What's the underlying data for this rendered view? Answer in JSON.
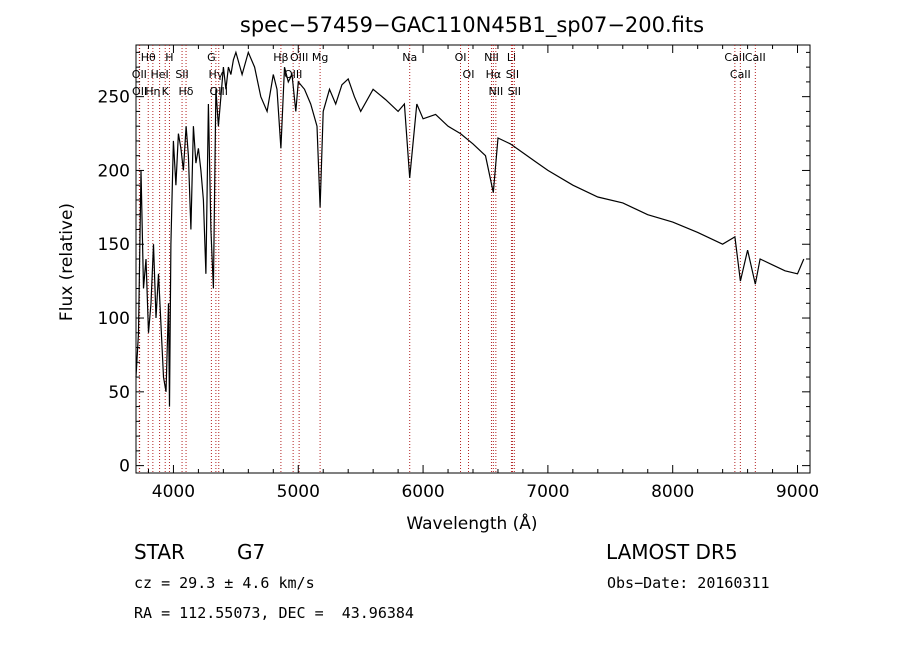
{
  "chart_data": {
    "type": "line",
    "title": "spec−57459−GAC110N45B1_sp07−200.fits",
    "xlabel": "Wavelength (Å)",
    "ylabel": "Flux (relative)",
    "xlim": [
      3700,
      9100
    ],
    "ylim": [
      -5,
      285
    ],
    "xticks": [
      4000,
      5000,
      6000,
      7000,
      8000,
      9000
    ],
    "xtick_labels": [
      "4000",
      "5000",
      "6000",
      "7000",
      "8000",
      "9000"
    ],
    "yticks": [
      0,
      50,
      100,
      150,
      200,
      250
    ],
    "ytick_labels": [
      "0",
      "50",
      "100",
      "150",
      "200",
      "250"
    ],
    "grid": false,
    "series": [
      {
        "color": "#000000",
        "x": [
          3700,
          3720,
          3740,
          3760,
          3780,
          3800,
          3820,
          3840,
          3860,
          3880,
          3900,
          3920,
          3940,
          3960,
          3968,
          3980,
          4000,
          4020,
          4040,
          4060,
          4080,
          4101,
          4120,
          4140,
          4160,
          4180,
          4200,
          4220,
          4240,
          4260,
          4280,
          4300,
          4320,
          4340,
          4360,
          4380,
          4400,
          4420,
          4440,
          4460,
          4480,
          4500,
          4550,
          4600,
          4650,
          4700,
          4750,
          4800,
          4830,
          4861,
          4890,
          4920,
          4950,
          4980,
          5000,
          5050,
          5100,
          5150,
          5175,
          5200,
          5250,
          5300,
          5350,
          5400,
          5450,
          5500,
          5600,
          5700,
          5800,
          5850,
          5893,
          5950,
          6000,
          6100,
          6200,
          6300,
          6400,
          6500,
          6563,
          6600,
          6700,
          6800,
          6900,
          7000,
          7200,
          7400,
          7600,
          7800,
          8000,
          8200,
          8400,
          8498,
          8542,
          8600,
          8662,
          8700,
          8800,
          8900,
          9000,
          9050
        ],
        "y": [
          60,
          90,
          200,
          120,
          140,
          90,
          110,
          150,
          100,
          130,
          95,
          60,
          50,
          110,
          40,
          150,
          220,
          190,
          225,
          215,
          200,
          230,
          210,
          160,
          230,
          205,
          215,
          200,
          180,
          130,
          245,
          160,
          120,
          255,
          230,
          250,
          270,
          255,
          270,
          265,
          275,
          280,
          265,
          280,
          270,
          250,
          240,
          265,
          255,
          215,
          270,
          260,
          265,
          240,
          260,
          255,
          245,
          230,
          175,
          240,
          255,
          245,
          258,
          262,
          250,
          240,
          255,
          248,
          240,
          245,
          195,
          245,
          235,
          238,
          230,
          225,
          218,
          210,
          185,
          222,
          218,
          212,
          206,
          200,
          190,
          182,
          178,
          170,
          165,
          158,
          150,
          155,
          125,
          146,
          123,
          140,
          136,
          132,
          130,
          140
        ]
      }
    ],
    "line_ids": [
      {
        "label": "Hθ",
        "x": 3798
      },
      {
        "label": "OII",
        "x": 3727
      },
      {
        "label": "OII",
        "x": 3729
      },
      {
        "label": "Hη",
        "x": 3835
      },
      {
        "label": "HeI",
        "x": 3889
      },
      {
        "label": "K",
        "x": 3934
      },
      {
        "label": "H",
        "x": 3968
      },
      {
        "label": "SII",
        "x": 4069
      },
      {
        "label": "Hδ",
        "x": 4101
      },
      {
        "label": "G",
        "x": 4304
      },
      {
        "label": "Hγ",
        "x": 4340
      },
      {
        "label": "OIII",
        "x": 4363
      },
      {
        "label": "Hβ",
        "x": 4861
      },
      {
        "label": "OIII",
        "x": 4959
      },
      {
        "label": "OIII",
        "x": 5007
      },
      {
        "label": "Mg",
        "x": 5175
      },
      {
        "label": "Na",
        "x": 5893
      },
      {
        "label": "OI",
        "x": 6300
      },
      {
        "label": "OI",
        "x": 6364
      },
      {
        "label": "NII",
        "x": 6548
      },
      {
        "label": "Hα",
        "x": 6563
      },
      {
        "label": "NII",
        "x": 6583
      },
      {
        "label": "Li",
        "x": 6708
      },
      {
        "label": "SII",
        "x": 6716
      },
      {
        "label": "SII",
        "x": 6731
      },
      {
        "label": "CaII",
        "x": 8498
      },
      {
        "label": "CaII",
        "x": 8542
      },
      {
        "label": "CaII",
        "x": 8662
      }
    ]
  },
  "info": {
    "object_class": "STAR",
    "subclass": "G7",
    "survey": "LAMOST DR5",
    "redshift": "cz = 29.3 ± 4.6 km/s",
    "obs_date": "Obs−Date: 20160311",
    "coords": "RA = 112.55073, DEC =  43.96384"
  }
}
